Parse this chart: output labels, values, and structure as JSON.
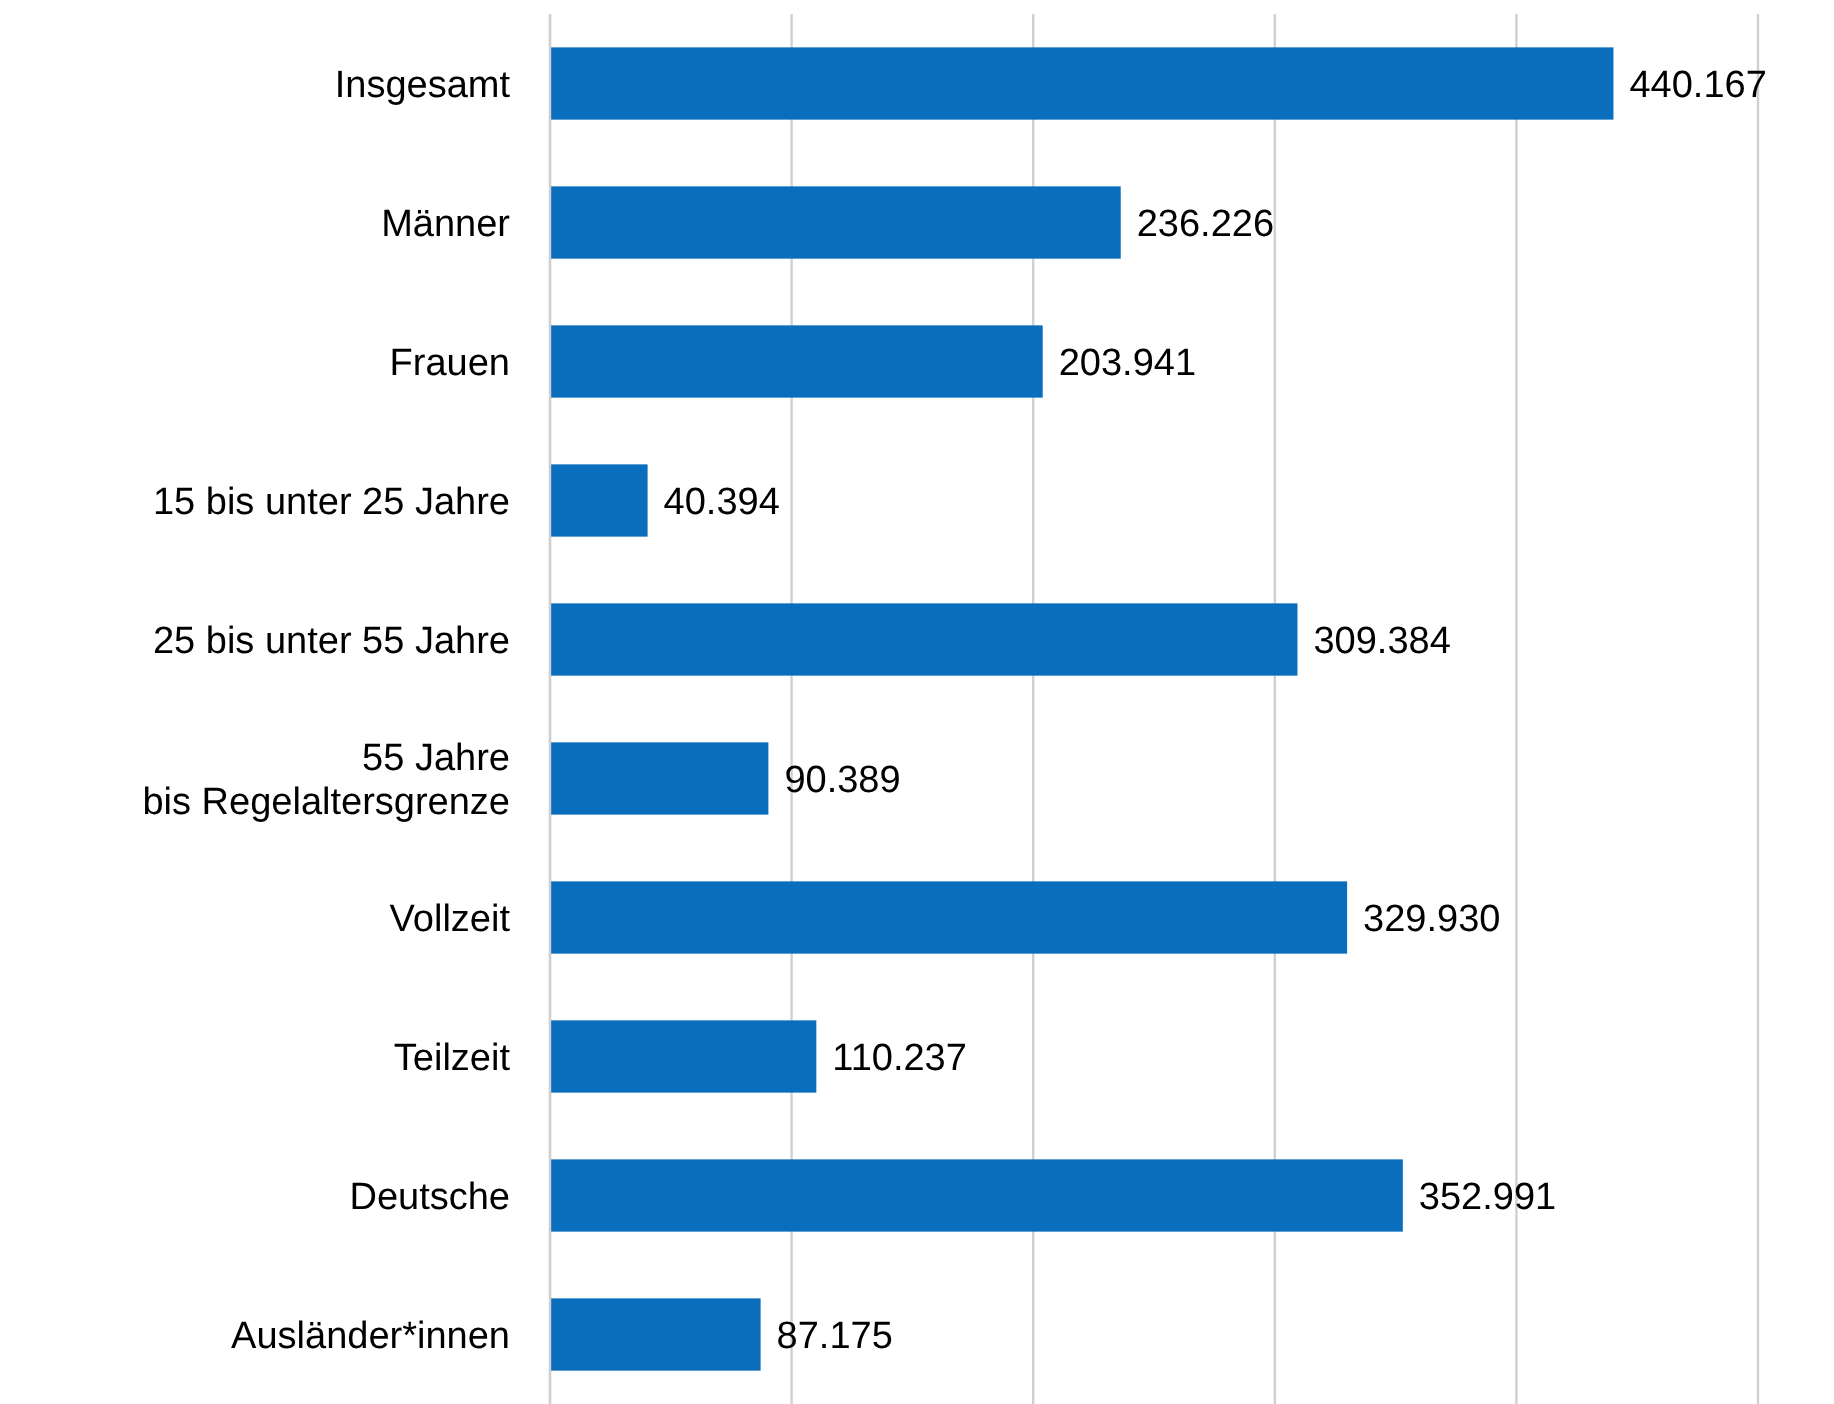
{
  "chart_data": {
    "type": "bar",
    "orientation": "horizontal",
    "categories": [
      "Insgesamt",
      "Männer",
      "Frauen",
      "15 bis unter 25 Jahre",
      "25 bis unter 55 Jahre",
      "55 Jahre\nbis Regelaltersgrenze",
      "Vollzeit",
      "Teilzeit",
      "Deutsche",
      "Ausländer*innen"
    ],
    "values": [
      440167,
      236226,
      203941,
      40394,
      309384,
      90389,
      329930,
      110237,
      352991,
      87175
    ],
    "value_labels": [
      "440.167",
      "236.226",
      "203.941",
      "40.394",
      "309.384",
      "90.389",
      "329.930",
      "110.237",
      "352.991",
      "87.175"
    ],
    "color": "#0a6ebd",
    "xlim": [
      0,
      500000
    ],
    "xticks": [
      {
        "value": 0,
        "label": null
      },
      {
        "value": 100000,
        "label": null
      },
      {
        "value": 200000,
        "label": null
      },
      {
        "value": 300000,
        "label": null
      },
      {
        "value": 400000,
        "label": null
      },
      {
        "value": 500000,
        "label": null
      }
    ],
    "grid": "x",
    "tick_labels": "y"
  }
}
